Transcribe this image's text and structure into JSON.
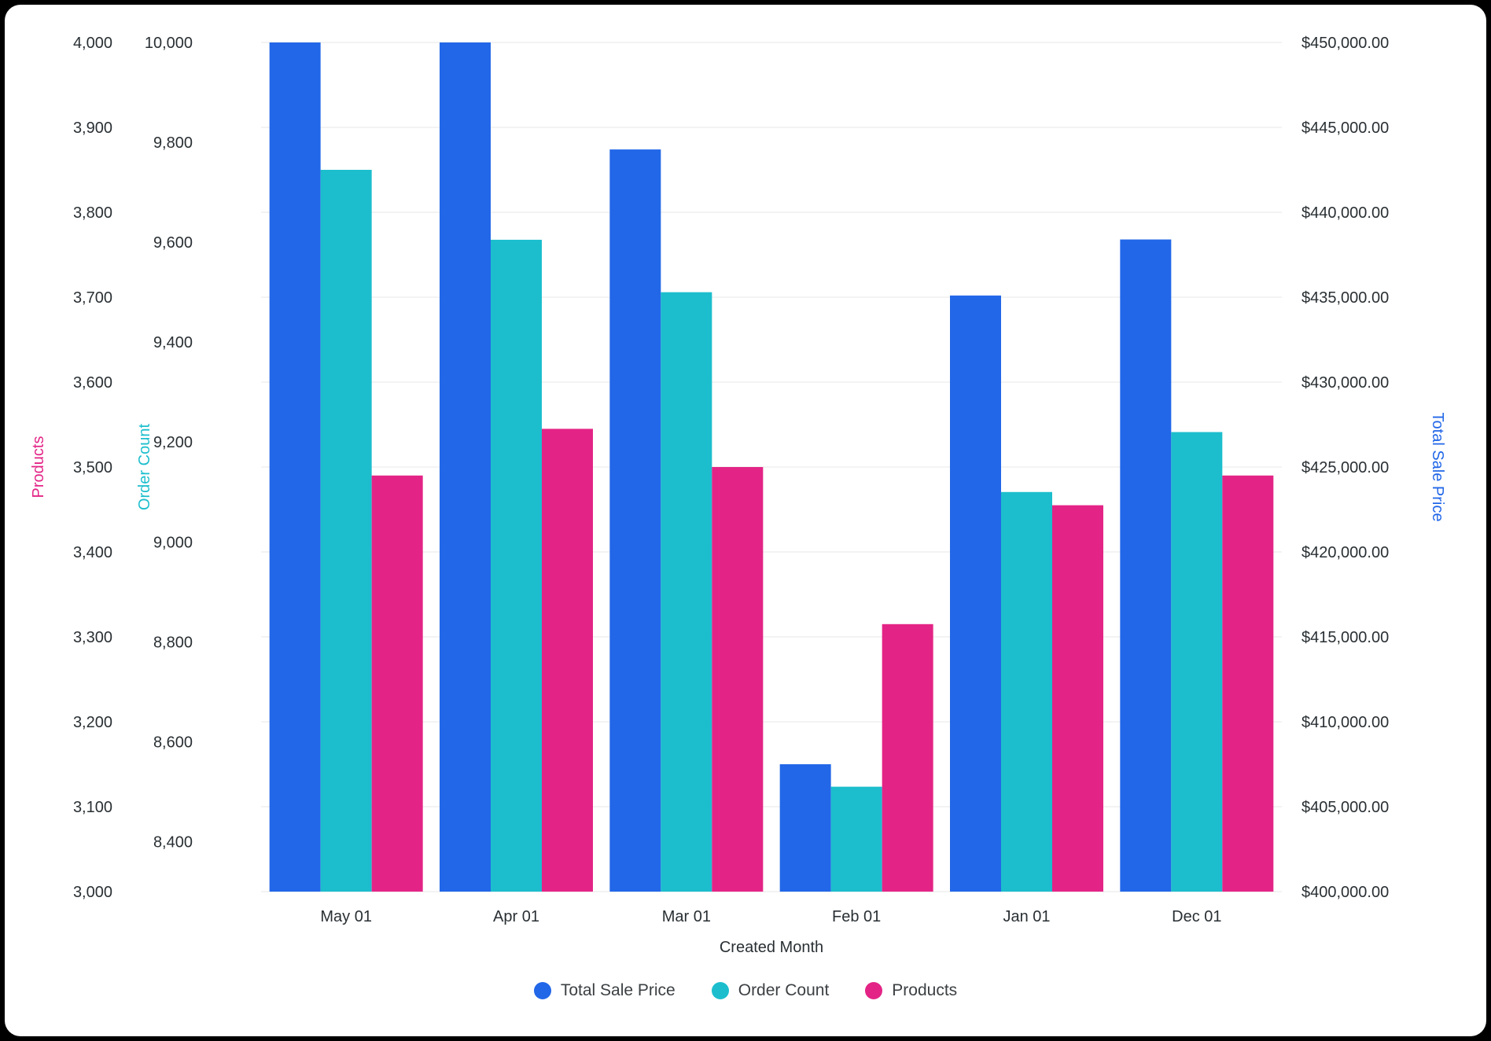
{
  "chart_data": {
    "type": "bar",
    "title": "",
    "xlabel": "Created Month",
    "categories": [
      "May 01",
      "Apr 01",
      "Mar 01",
      "Feb 01",
      "Jan 01",
      "Dec 01"
    ],
    "grid": true,
    "legend_position": "bottom",
    "series": [
      {
        "name": "Total Sale Price",
        "axis": "price",
        "color": "#2267e8",
        "values": [
          450000,
          450000,
          443700,
          407500,
          435100,
          438400
        ]
      },
      {
        "name": "Order Count",
        "axis": "order",
        "color": "#1cbecd",
        "values": [
          9745,
          9605,
          9500,
          8510,
          9100,
          9220
        ]
      },
      {
        "name": "Products",
        "axis": "products",
        "color": "#e32486",
        "values": [
          3490,
          3545,
          3500,
          3315,
          3455,
          3490
        ]
      }
    ],
    "axes": {
      "products": {
        "title": "Products",
        "color": "#e32486",
        "position": "far-left",
        "min": 3000,
        "max": 4000,
        "tick_values": [
          3000,
          3100,
          3200,
          3300,
          3400,
          3500,
          3600,
          3700,
          3800,
          3900,
          4000
        ],
        "ticks": [
          "3,000",
          "3,100",
          "3,200",
          "3,300",
          "3,400",
          "3,500",
          "3,600",
          "3,700",
          "3,800",
          "3,900",
          "4,000"
        ]
      },
      "order": {
        "title": "Order Count",
        "color": "#1cbecd",
        "position": "left",
        "min": 8300,
        "max": 10000,
        "tick_values": [
          8400,
          8600,
          8800,
          9000,
          9200,
          9400,
          9600,
          9800,
          10000
        ],
        "ticks": [
          "8,400",
          "8,600",
          "8,800",
          "9,000",
          "9,200",
          "9,400",
          "9,600",
          "9,800",
          "10,000"
        ]
      },
      "price": {
        "title": "Total Sale Price",
        "color": "#2267e8",
        "position": "right",
        "min": 400000,
        "max": 450000,
        "tick_values": [
          400000,
          405000,
          410000,
          415000,
          420000,
          425000,
          430000,
          435000,
          440000,
          445000,
          450000
        ],
        "ticks": [
          "$400,000.00",
          "$405,000.00",
          "$410,000.00",
          "$415,000.00",
          "$420,000.00",
          "$425,000.00",
          "$430,000.00",
          "$435,000.00",
          "$440,000.00",
          "$445,000.00",
          "$450,000.00"
        ]
      }
    },
    "legend": [
      {
        "label": "Total Sale Price",
        "color": "#2267e8"
      },
      {
        "label": "Order Count",
        "color": "#1cbecd"
      },
      {
        "label": "Products",
        "color": "#e32486"
      }
    ]
  }
}
